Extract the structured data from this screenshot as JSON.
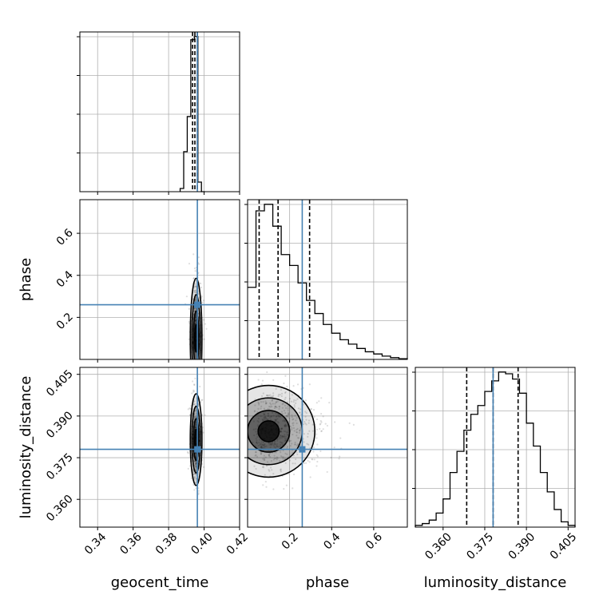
{
  "chart_data": {
    "type": "corner",
    "parameters": [
      "geocent_time",
      "phase",
      "luminosity_distance"
    ],
    "colors": {
      "truth": "#4682b4",
      "hist": "#000000",
      "grid": "#b0b0b0"
    },
    "truths": {
      "geocent_time": 0.3962,
      "phase": 0.26,
      "luminosity_distance": 0.378
    },
    "axes": {
      "geocent_time": {
        "range": [
          0.33,
          0.42
        ],
        "ticks": [
          0.34,
          0.36,
          0.38,
          0.4,
          0.42
        ],
        "tick_labels": [
          "0.34",
          "0.36",
          "0.38",
          "0.40",
          "0.42"
        ]
      },
      "phase": {
        "range": [
          0.0,
          0.76
        ],
        "ticks": [
          0.2,
          0.4,
          0.6
        ],
        "tick_labels": [
          "0.2",
          "0.4",
          "0.6"
        ]
      },
      "luminosity_distance": {
        "range": [
          0.35,
          0.4075
        ],
        "ticks": [
          0.36,
          0.375,
          0.39,
          0.405
        ],
        "tick_labels": [
          "0.360",
          "0.375",
          "0.390",
          "0.405"
        ]
      }
    },
    "marginals": {
      "geocent_time": {
        "bin_edges": [
          0.3865,
          0.3885,
          0.3905,
          0.3925,
          0.3945,
          0.3965,
          0.3985,
          0.4005
        ],
        "counts": [
          0.02,
          0.25,
          0.47,
          0.95,
          0.97,
          0.06,
          0.0
        ],
        "quantiles": [
          0.3935,
          0.3948,
          0.3962
        ]
      },
      "phase": {
        "bin_edges": [
          0.0,
          0.04,
          0.08,
          0.12,
          0.16,
          0.2,
          0.24,
          0.28,
          0.32,
          0.36,
          0.4,
          0.44,
          0.48,
          0.52,
          0.56,
          0.6,
          0.64,
          0.68,
          0.72,
          0.76
        ],
        "counts": [
          0.33,
          0.68,
          0.71,
          0.61,
          0.48,
          0.43,
          0.35,
          0.27,
          0.21,
          0.16,
          0.12,
          0.09,
          0.07,
          0.05,
          0.035,
          0.025,
          0.015,
          0.008,
          0.003
        ],
        "quantiles": [
          0.055,
          0.145,
          0.295
        ]
      },
      "luminosity_distance": {
        "bin_edges": [
          0.35,
          0.3525,
          0.355,
          0.3575,
          0.36,
          0.3625,
          0.365,
          0.3675,
          0.37,
          0.3725,
          0.375,
          0.3775,
          0.38,
          0.3825,
          0.385,
          0.3875,
          0.39,
          0.3925,
          0.395,
          0.3975,
          0.4,
          0.4025,
          0.405,
          0.4075
        ],
        "counts": [
          0.01,
          0.02,
          0.04,
          0.08,
          0.16,
          0.31,
          0.43,
          0.55,
          0.64,
          0.69,
          0.77,
          0.83,
          0.88,
          0.87,
          0.84,
          0.76,
          0.59,
          0.46,
          0.31,
          0.2,
          0.1,
          0.03,
          0.01
        ],
        "quantiles": [
          0.3685,
          0.378,
          0.387
        ]
      }
    },
    "joint": [
      {
        "x": "geocent_time",
        "y": "phase",
        "center": [
          0.3955,
          0.1
        ],
        "spread": [
          0.0015,
          0.13
        ]
      },
      {
        "x": "geocent_time",
        "y": "luminosity_distance",
        "center": [
          0.3955,
          0.3815
        ],
        "spread": [
          0.0015,
          0.0075
        ]
      },
      {
        "x": "phase",
        "y": "luminosity_distance",
        "center": [
          0.1,
          0.3845
        ],
        "spread": [
          0.1,
          0.0075
        ]
      }
    ],
    "grid": true
  }
}
